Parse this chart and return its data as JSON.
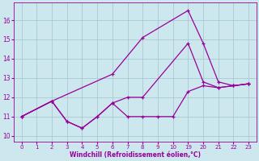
{
  "xlabel": "Windchill (Refroidissement éolien,°C)",
  "bg_color": "#cce8ee",
  "line_color": "#990099",
  "grid_color": "#aac8d0",
  "xtick_labels": [
    "0",
    "1",
    "2",
    "3",
    "4",
    "5",
    "6",
    "7",
    "8",
    "9",
    "10",
    "19",
    "20",
    "21",
    "22",
    "23"
  ],
  "yticks": [
    10,
    11,
    12,
    13,
    14,
    15,
    16
  ],
  "ylim": [
    9.7,
    16.9
  ],
  "series1_xi": [
    0,
    2,
    3,
    4,
    5,
    6,
    7,
    8,
    9,
    10,
    11,
    12,
    13,
    14,
    15
  ],
  "series1_y": [
    11.0,
    11.8,
    10.75,
    10.4,
    11.0,
    11.7,
    11.0,
    11.0,
    11.0,
    11.0,
    12.3,
    12.6,
    12.5,
    12.6,
    12.7
  ],
  "series2_xi": [
    0,
    2,
    3,
    4,
    5,
    6,
    7,
    8,
    11,
    12,
    13,
    14,
    15
  ],
  "series2_y": [
    11.0,
    11.8,
    10.75,
    10.4,
    11.0,
    11.7,
    12.0,
    12.0,
    14.8,
    12.8,
    12.5,
    12.6,
    12.7
  ],
  "series3_xi": [
    0,
    2,
    6,
    8,
    11,
    12,
    13,
    14,
    15
  ],
  "series3_y": [
    11.0,
    11.8,
    13.2,
    15.1,
    16.5,
    14.8,
    12.8,
    12.6,
    12.7
  ]
}
